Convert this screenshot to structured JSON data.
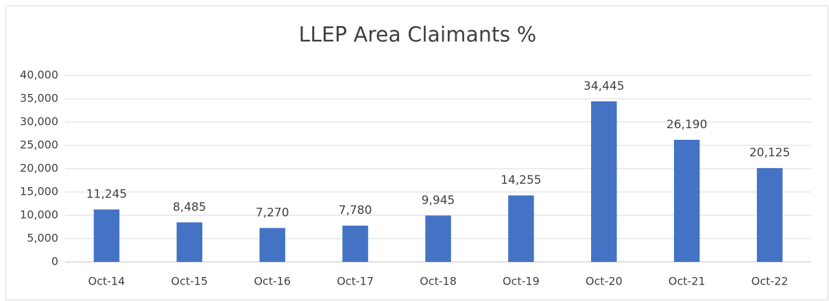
{
  "chart_data": {
    "type": "bar",
    "title": "LLEP Area Claimants %",
    "categories": [
      "Oct-14",
      "Oct-15",
      "Oct-16",
      "Oct-17",
      "Oct-18",
      "Oct-19",
      "Oct-20",
      "Oct-21",
      "Oct-22"
    ],
    "values": [
      11245,
      8485,
      7270,
      7780,
      9945,
      14255,
      34445,
      26190,
      20125
    ],
    "value_labels": [
      "11,245",
      "8,485",
      "7,270",
      "7,780",
      "9,945",
      "14,255",
      "34,445",
      "26,190",
      "20,125"
    ],
    "color": "#4472c4",
    "ylim": [
      0,
      40000
    ],
    "yticks": [
      0,
      {
        "value": 5000,
        "label": "5,000"
      },
      {
        "value": 10000,
        "label": "10,000"
      },
      {
        "value": 15000,
        "label": "15,000"
      },
      {
        "value": 20000,
        "label": "20,000"
      },
      {
        "value": 25000,
        "label": "25,000"
      },
      {
        "value": 30000,
        "label": "30,000"
      },
      {
        "value": 35000,
        "label": "35,000"
      },
      {
        "value": 40000,
        "label": "40,000"
      }
    ],
    "grid": true
  }
}
